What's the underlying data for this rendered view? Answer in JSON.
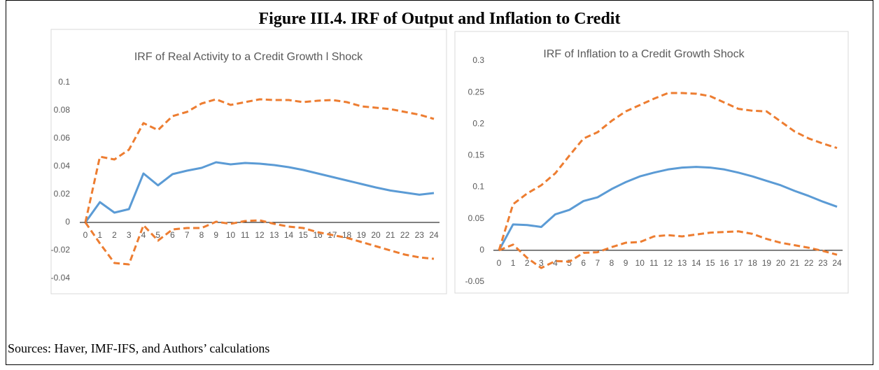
{
  "figure_title": "Figure III.4. IRF of Output and Inflation to Credit",
  "source": "Sources: Haver, IMF-IFS, and Authors’ calculations",
  "chart_data": [
    {
      "type": "line",
      "title": "IRF of Real Activity to a Credit Growth l Shock",
      "categories": [
        "0",
        "1",
        "2",
        "3",
        "4",
        "5",
        "6",
        "7",
        "8",
        "9",
        "10",
        "11",
        "12",
        "13",
        "14",
        "15",
        "16",
        "17",
        "18",
        "19",
        "20",
        "21",
        "22",
        "23",
        "24"
      ],
      "ylim": [
        -0.04,
        0.1
      ],
      "yticks": [
        -0.04,
        -0.02,
        0,
        0.02,
        0.04,
        0.06,
        0.08,
        0.1
      ],
      "grid": false,
      "series": [
        {
          "color": "#5b9bd5",
          "dashed": false,
          "values": [
            0,
            0.0145,
            0.007,
            0.0095,
            0.035,
            0.0265,
            0.0345,
            0.037,
            0.039,
            0.043,
            0.0415,
            0.0425,
            0.042,
            0.041,
            0.0395,
            0.0375,
            0.035,
            0.0325,
            0.03,
            0.0275,
            0.025,
            0.0228,
            0.0213,
            0.0198,
            0.021
          ]
        },
        {
          "color": "#ed7d31",
          "dashed": true,
          "values": [
            0,
            0.047,
            0.045,
            0.052,
            0.071,
            0.066,
            0.076,
            0.079,
            0.085,
            0.088,
            0.084,
            0.086,
            0.088,
            0.0875,
            0.0875,
            0.086,
            0.087,
            0.0875,
            0.086,
            0.083,
            0.082,
            0.081,
            0.079,
            0.077,
            0.074
          ]
        },
        {
          "color": "#ed7d31",
          "dashed": true,
          "values": [
            0,
            -0.015,
            -0.029,
            -0.03,
            -0.002,
            -0.013,
            -0.005,
            -0.004,
            -0.004,
            0.0005,
            -0.001,
            0.001,
            0.0015,
            -0.001,
            -0.003,
            -0.004,
            -0.007,
            -0.009,
            -0.011,
            -0.014,
            -0.017,
            -0.02,
            -0.023,
            -0.025,
            -0.026
          ]
        }
      ]
    },
    {
      "type": "line",
      "title": "IRF of Inflation to a Credit Growth Shock",
      "categories": [
        "0",
        "1",
        "2",
        "3",
        "4",
        "5",
        "6",
        "7",
        "8",
        "9",
        "10",
        "11",
        "12",
        "13",
        "14",
        "15",
        "16",
        "17",
        "18",
        "19",
        "20",
        "21",
        "22",
        "23",
        "24"
      ],
      "ylim": [
        -0.05,
        0.3
      ],
      "yticks": [
        -0.05,
        0,
        0.05,
        0.1,
        0.15,
        0.2,
        0.25,
        0.3
      ],
      "grid": false,
      "series": [
        {
          "color": "#5b9bd5",
          "dashed": false,
          "values": [
            0,
            0.041,
            0.04,
            0.037,
            0.057,
            0.064,
            0.078,
            0.084,
            0.097,
            0.108,
            0.117,
            0.123,
            0.128,
            0.131,
            0.132,
            0.131,
            0.128,
            0.123,
            0.117,
            0.11,
            0.103,
            0.094,
            0.086,
            0.077,
            0.069
          ]
        },
        {
          "color": "#ed7d31",
          "dashed": true,
          "values": [
            0,
            0.073,
            0.09,
            0.103,
            0.122,
            0.15,
            0.177,
            0.187,
            0.205,
            0.22,
            0.23,
            0.24,
            0.249,
            0.249,
            0.248,
            0.244,
            0.234,
            0.224,
            0.221,
            0.22,
            0.204,
            0.188,
            0.177,
            0.169,
            0.162
          ]
        },
        {
          "color": "#ed7d31",
          "dashed": true,
          "values": [
            0,
            0.009,
            -0.012,
            -0.028,
            -0.017,
            -0.018,
            -0.004,
            -0.003,
            0.005,
            0.012,
            0.013,
            0.022,
            0.024,
            0.022,
            0.025,
            0.028,
            0.029,
            0.03,
            0.026,
            0.018,
            0.012,
            0.008,
            0.004,
            -0.001,
            -0.007
          ]
        }
      ]
    }
  ]
}
